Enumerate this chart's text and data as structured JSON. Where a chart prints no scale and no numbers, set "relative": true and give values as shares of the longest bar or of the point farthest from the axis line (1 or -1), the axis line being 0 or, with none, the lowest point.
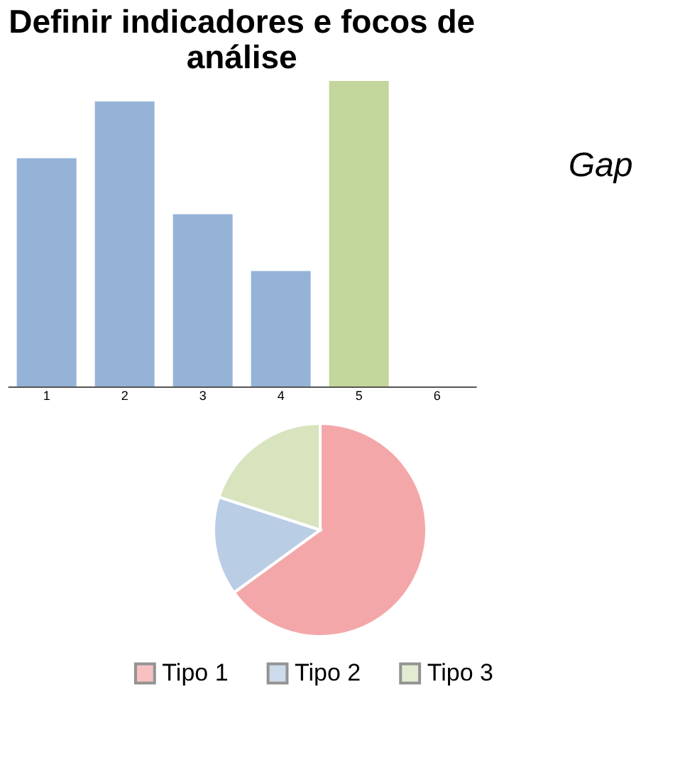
{
  "chart_data": [
    {
      "type": "bar",
      "title": "Definir indicadores e focos de análise",
      "relative": true,
      "categories": [
        "1",
        "2",
        "3",
        "4",
        "5",
        "6"
      ],
      "values": [
        0.747,
        0.933,
        0.564,
        0.378,
        1,
        null
      ],
      "colors": [
        "#95b3d7",
        "#95b3d7",
        "#95b3d7",
        "#95b3d7",
        "#c3d69b",
        "#95b3d7"
      ],
      "annotations": [
        "Gap"
      ]
    },
    {
      "type": "pie",
      "categories": [
        "Tipo 1",
        "Tipo 2",
        "Tipo 3"
      ],
      "values": [
        65,
        15,
        20
      ],
      "colors": [
        "#f4a7a9",
        "#b9cde5",
        "#d7e4bd"
      ],
      "legend": "bottom"
    }
  ]
}
